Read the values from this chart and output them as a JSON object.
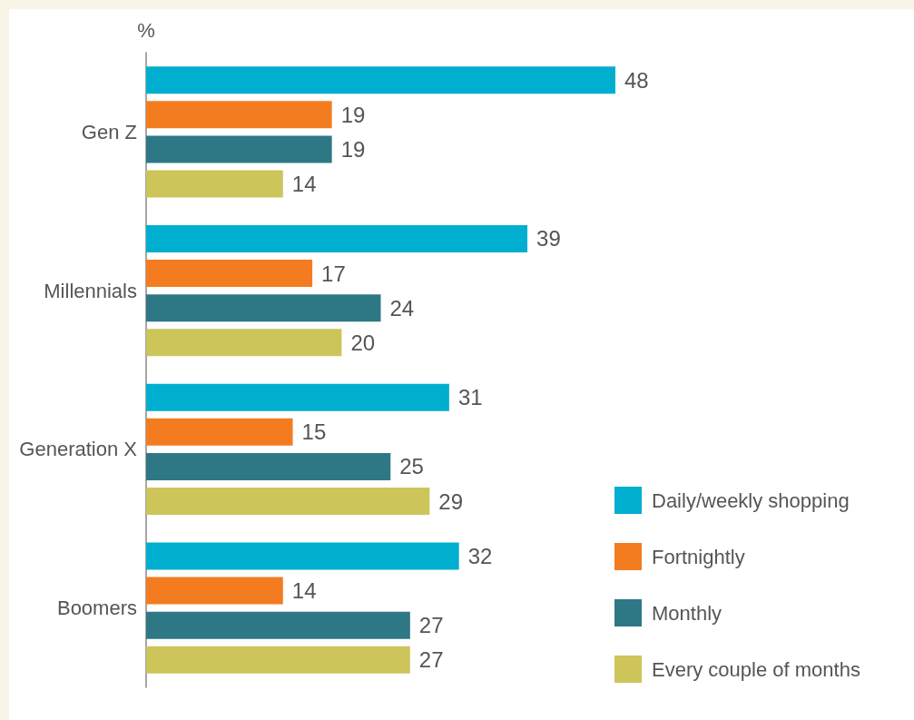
{
  "chart_data": {
    "type": "bar",
    "orientation": "horizontal",
    "xlabel": "%",
    "categories": [
      "Gen Z",
      "Millennials",
      "Generation X",
      "Boomers"
    ],
    "series": [
      {
        "name": "Daily/weekly shopping",
        "color": "#00aecf",
        "values": [
          48,
          39,
          31,
          32
        ]
      },
      {
        "name": "Fortnightly",
        "color": "#f47c20",
        "values": [
          19,
          17,
          15,
          14
        ]
      },
      {
        "name": "Monthly",
        "color": "#2e7886",
        "values": [
          19,
          24,
          25,
          27
        ]
      },
      {
        "name": "Every couple of months",
        "color": "#cdc55a",
        "values": [
          14,
          20,
          29,
          27
        ]
      }
    ],
    "data_labels": true,
    "legend": "bottom right"
  }
}
